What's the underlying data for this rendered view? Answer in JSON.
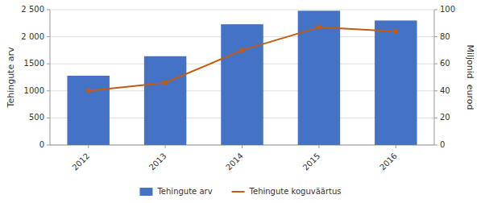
{
  "chart_data": {
    "type": "bar",
    "categories": [
      "2012",
      "2013",
      "2014",
      "2015",
      "2016"
    ],
    "series": [
      {
        "name": "Tehingute arv",
        "type": "bar",
        "color": "#4472C4",
        "values": [
          1280,
          1640,
          2230,
          2480,
          2300
        ]
      },
      {
        "name": "Tehingute koguväärtus",
        "type": "line",
        "color": "#C55A11",
        "marker": "circle",
        "axis": "y2",
        "values": [
          40,
          46,
          70,
          87,
          84
        ]
      }
    ],
    "ylabel": "Tehingute arv",
    "y2label": "Miljonid  eurod",
    "ylim": [
      0,
      2500
    ],
    "yticks": [
      0,
      500,
      1000,
      1500,
      {
        "value": 2000,
        "label": "2 000"
      },
      {
        "value": 2500,
        "label": "2 500"
      }
    ],
    "y2lim": [
      0,
      100
    ],
    "y2ticks": [
      0,
      20,
      40,
      60,
      80,
      100
    ],
    "grid": true,
    "legend": "bottom"
  }
}
